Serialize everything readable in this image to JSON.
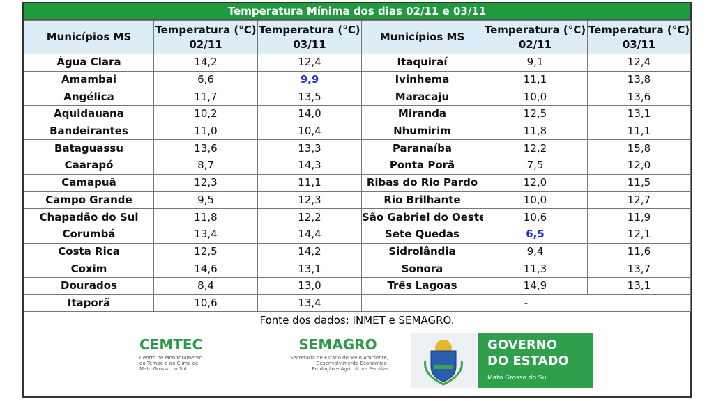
{
  "title": "Temperatura Mínima dos dias 02/11 e 03/11",
  "table": {
    "headers": [
      [
        "Municípios MS"
      ],
      [
        "Temperatura (°C)",
        "02/11"
      ],
      [
        "Temperatura (°C)",
        "03/11"
      ],
      [
        "Municípios MS"
      ],
      [
        "Temperatura (°C)",
        "02/11"
      ],
      [
        "Temperatura (°C)",
        "03/11"
      ]
    ],
    "rows": [
      [
        "Água Clara",
        "14,2",
        "12,4",
        "Itaquiraí",
        "9,1",
        "12,4"
      ],
      [
        "Amambai",
        "6,6",
        "9,9",
        "Ivinhema",
        "11,1",
        "13,8"
      ],
      [
        "Angélica",
        "11,7",
        "13,5",
        "Maracaju",
        "10,0",
        "13,6"
      ],
      [
        "Aquidauana",
        "10,2",
        "14,0",
        "Miranda",
        "12,5",
        "13,1"
      ],
      [
        "Bandeirantes",
        "11,0",
        "10,4",
        "Nhumirim",
        "11,8",
        "11,1"
      ],
      [
        "Bataguassu",
        "13,6",
        "13,3",
        "Paranaíba",
        "12,2",
        "15,8"
      ],
      [
        "Caarapó",
        "8,7",
        "14,3",
        "Ponta Porã",
        "7,5",
        "12,0"
      ],
      [
        "Camapuã",
        "12,3",
        "11,1",
        "Ribas do Rio Pardo",
        "12,0",
        "11,5"
      ],
      [
        "Campo Grande",
        "9,5",
        "12,3",
        "Rio Brilhante",
        "10,0",
        "12,7"
      ],
      [
        "Chapadão do Sul",
        "11,8",
        "12,2",
        "São Gabriel do Oeste",
        "10,6",
        "11,9"
      ],
      [
        "Corumbá",
        "13,4",
        "14,4",
        "Sete Quedas",
        "6,5",
        "12,1"
      ],
      [
        "Costa Rica",
        "12,5",
        "14,2",
        "Sidrolândia",
        "9,4",
        "11,6"
      ],
      [
        "Coxim",
        "14,6",
        "13,1",
        "Sonora",
        "11,3",
        "13,7"
      ],
      [
        "Dourados",
        "8,4",
        "13,0",
        "Três Lagoas",
        "14,9",
        "13,1"
      ],
      [
        "Itaporã",
        "10,6",
        "13,4",
        "-"
      ]
    ]
  },
  "source": "Fonte dos dados: INMET e SEMAGRO.",
  "logos": {
    "cemtec": {
      "name": "CEMTEC",
      "lines": [
        "Centro de Monitoramento",
        "do Tempo e do Clima de",
        "Mato Grosso do Sul"
      ]
    },
    "semagro": {
      "name": "SEMAGRO",
      "lines": [
        "Secretaria de Estado de Meio Ambiente,",
        "Desenvolvimento Econômico,",
        "Produção e Agricultura Familiar"
      ]
    },
    "governo": {
      "lines": [
        "GOVERNO",
        "DO ESTADO"
      ],
      "state": "Mato Grosso do Sul"
    }
  }
}
